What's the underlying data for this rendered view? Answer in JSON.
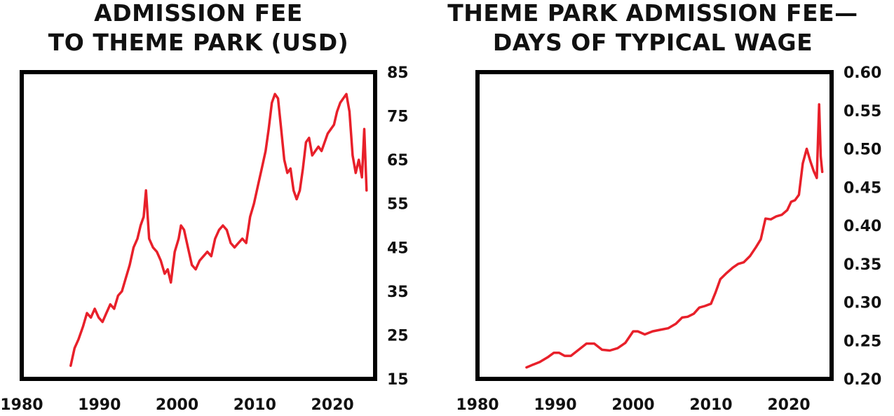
{
  "colors": {
    "series": "#e8202a",
    "frame": "#000000",
    "text": "#111111"
  },
  "chart_data": [
    {
      "type": "line",
      "title": "ADMISSION FEE\nTO THEME PARK (USD)",
      "xlabel": "",
      "ylabel": "",
      "xlim": [
        1980,
        2025.5
      ],
      "ylim": [
        15,
        85
      ],
      "x_ticks": [
        1980,
        1990,
        2000,
        2010,
        2020
      ],
      "y_ticks": [
        15,
        25,
        35,
        45,
        55,
        65,
        75,
        85
      ],
      "y_axis_side": "right",
      "grid": false,
      "legend": "none",
      "series": [
        {
          "x": [
            1986.3,
            1986.8,
            1987.3,
            1987.9,
            1988.4,
            1988.9,
            1989.4,
            1989.9,
            1990.4,
            1990.9,
            1991.4,
            1991.9,
            1992.4,
            1992.9,
            1993.4,
            1993.9,
            1994.4,
            1994.9,
            1995.3,
            1995.7,
            1996.0,
            1996.4,
            1996.9,
            1997.4,
            1997.9,
            1998.4,
            1998.8,
            1999.2,
            1999.7,
            2000.2,
            2000.5,
            2000.9,
            2001.4,
            2001.9,
            2002.4,
            2002.9,
            2003.4,
            2003.9,
            2004.4,
            2004.9,
            2005.4,
            2005.9,
            2006.4,
            2006.9,
            2007.4,
            2007.9,
            2008.4,
            2008.9,
            2009.4,
            2009.9,
            2010.4,
            2010.9,
            2011.4,
            2011.8,
            2012.2,
            2012.6,
            2013.0,
            2013.4,
            2013.8,
            2014.2,
            2014.6,
            2015.0,
            2015.4,
            2015.8,
            2016.2,
            2016.6,
            2017.0,
            2017.4,
            2017.8,
            2018.2,
            2018.6,
            2019.0,
            2019.4,
            2019.8,
            2020.2,
            2020.6,
            2021.0,
            2021.4,
            2021.8,
            2022.2,
            2022.6,
            2023.0,
            2023.4,
            2023.8,
            2024.1,
            2024.4
          ],
          "y": [
            18,
            22,
            24,
            27,
            30,
            29,
            31,
            29,
            28,
            30,
            32,
            31,
            34,
            35,
            38,
            41,
            45,
            47,
            50,
            52,
            58,
            47,
            45,
            44,
            42,
            39,
            40,
            37,
            44,
            47,
            50,
            49,
            45,
            41,
            40,
            42,
            43,
            44,
            43,
            47,
            49,
            50,
            49,
            46,
            45,
            46,
            47,
            46,
            52,
            55,
            59,
            63,
            67,
            72,
            78,
            80,
            79,
            72,
            65,
            62,
            63,
            58,
            56,
            58,
            63,
            69,
            70,
            66,
            67,
            68,
            67,
            69,
            71,
            72,
            73,
            76,
            78,
            79,
            80,
            76,
            66,
            62,
            65,
            61,
            72,
            58
          ]
        }
      ]
    },
    {
      "type": "line",
      "title": "THEME PARK ADMISSION FEE—\nDAYS OF TYPICAL WAGE",
      "xlabel": "",
      "ylabel": "",
      "xlim": [
        1980,
        2025.5
      ],
      "ylim": [
        0.2,
        0.6
      ],
      "x_ticks": [
        1980,
        1990,
        2000,
        2010,
        2020
      ],
      "y_ticks": [
        0.2,
        0.25,
        0.3,
        0.35,
        0.4,
        0.45,
        0.5,
        0.55,
        0.6
      ],
      "y_axis_side": "right",
      "grid": false,
      "legend": "none",
      "series": [
        {
          "x": [
            1986.3,
            1987.0,
            1988.0,
            1989.0,
            1989.8,
            1990.5,
            1991.2,
            1992.0,
            1993.0,
            1994.0,
            1995.0,
            1996.0,
            1997.0,
            1998.0,
            1999.0,
            2000.0,
            2000.6,
            2001.5,
            2002.5,
            2003.5,
            2004.5,
            2005.5,
            2006.3,
            2007.0,
            2007.8,
            2008.5,
            2009.2,
            2010.0,
            2010.6,
            2011.2,
            2012.0,
            2012.8,
            2013.5,
            2014.2,
            2015.0,
            2015.8,
            2016.4,
            2017.0,
            2017.7,
            2018.4,
            2019.1,
            2019.8,
            2020.3,
            2020.8,
            2021.3,
            2021.8,
            2022.3,
            2022.8,
            2023.2,
            2023.6,
            2023.9,
            2024.1,
            2024.3
          ],
          "y": [
            0.215,
            0.218,
            0.222,
            0.228,
            0.234,
            0.234,
            0.23,
            0.23,
            0.238,
            0.246,
            0.246,
            0.238,
            0.237,
            0.24,
            0.247,
            0.262,
            0.262,
            0.258,
            0.262,
            0.264,
            0.266,
            0.272,
            0.28,
            0.281,
            0.285,
            0.293,
            0.295,
            0.298,
            0.313,
            0.33,
            0.338,
            0.345,
            0.35,
            0.352,
            0.36,
            0.372,
            0.382,
            0.409,
            0.408,
            0.412,
            0.414,
            0.42,
            0.431,
            0.433,
            0.44,
            0.481,
            0.5,
            0.483,
            0.471,
            0.462,
            0.558,
            0.49,
            0.47
          ]
        }
      ]
    }
  ]
}
